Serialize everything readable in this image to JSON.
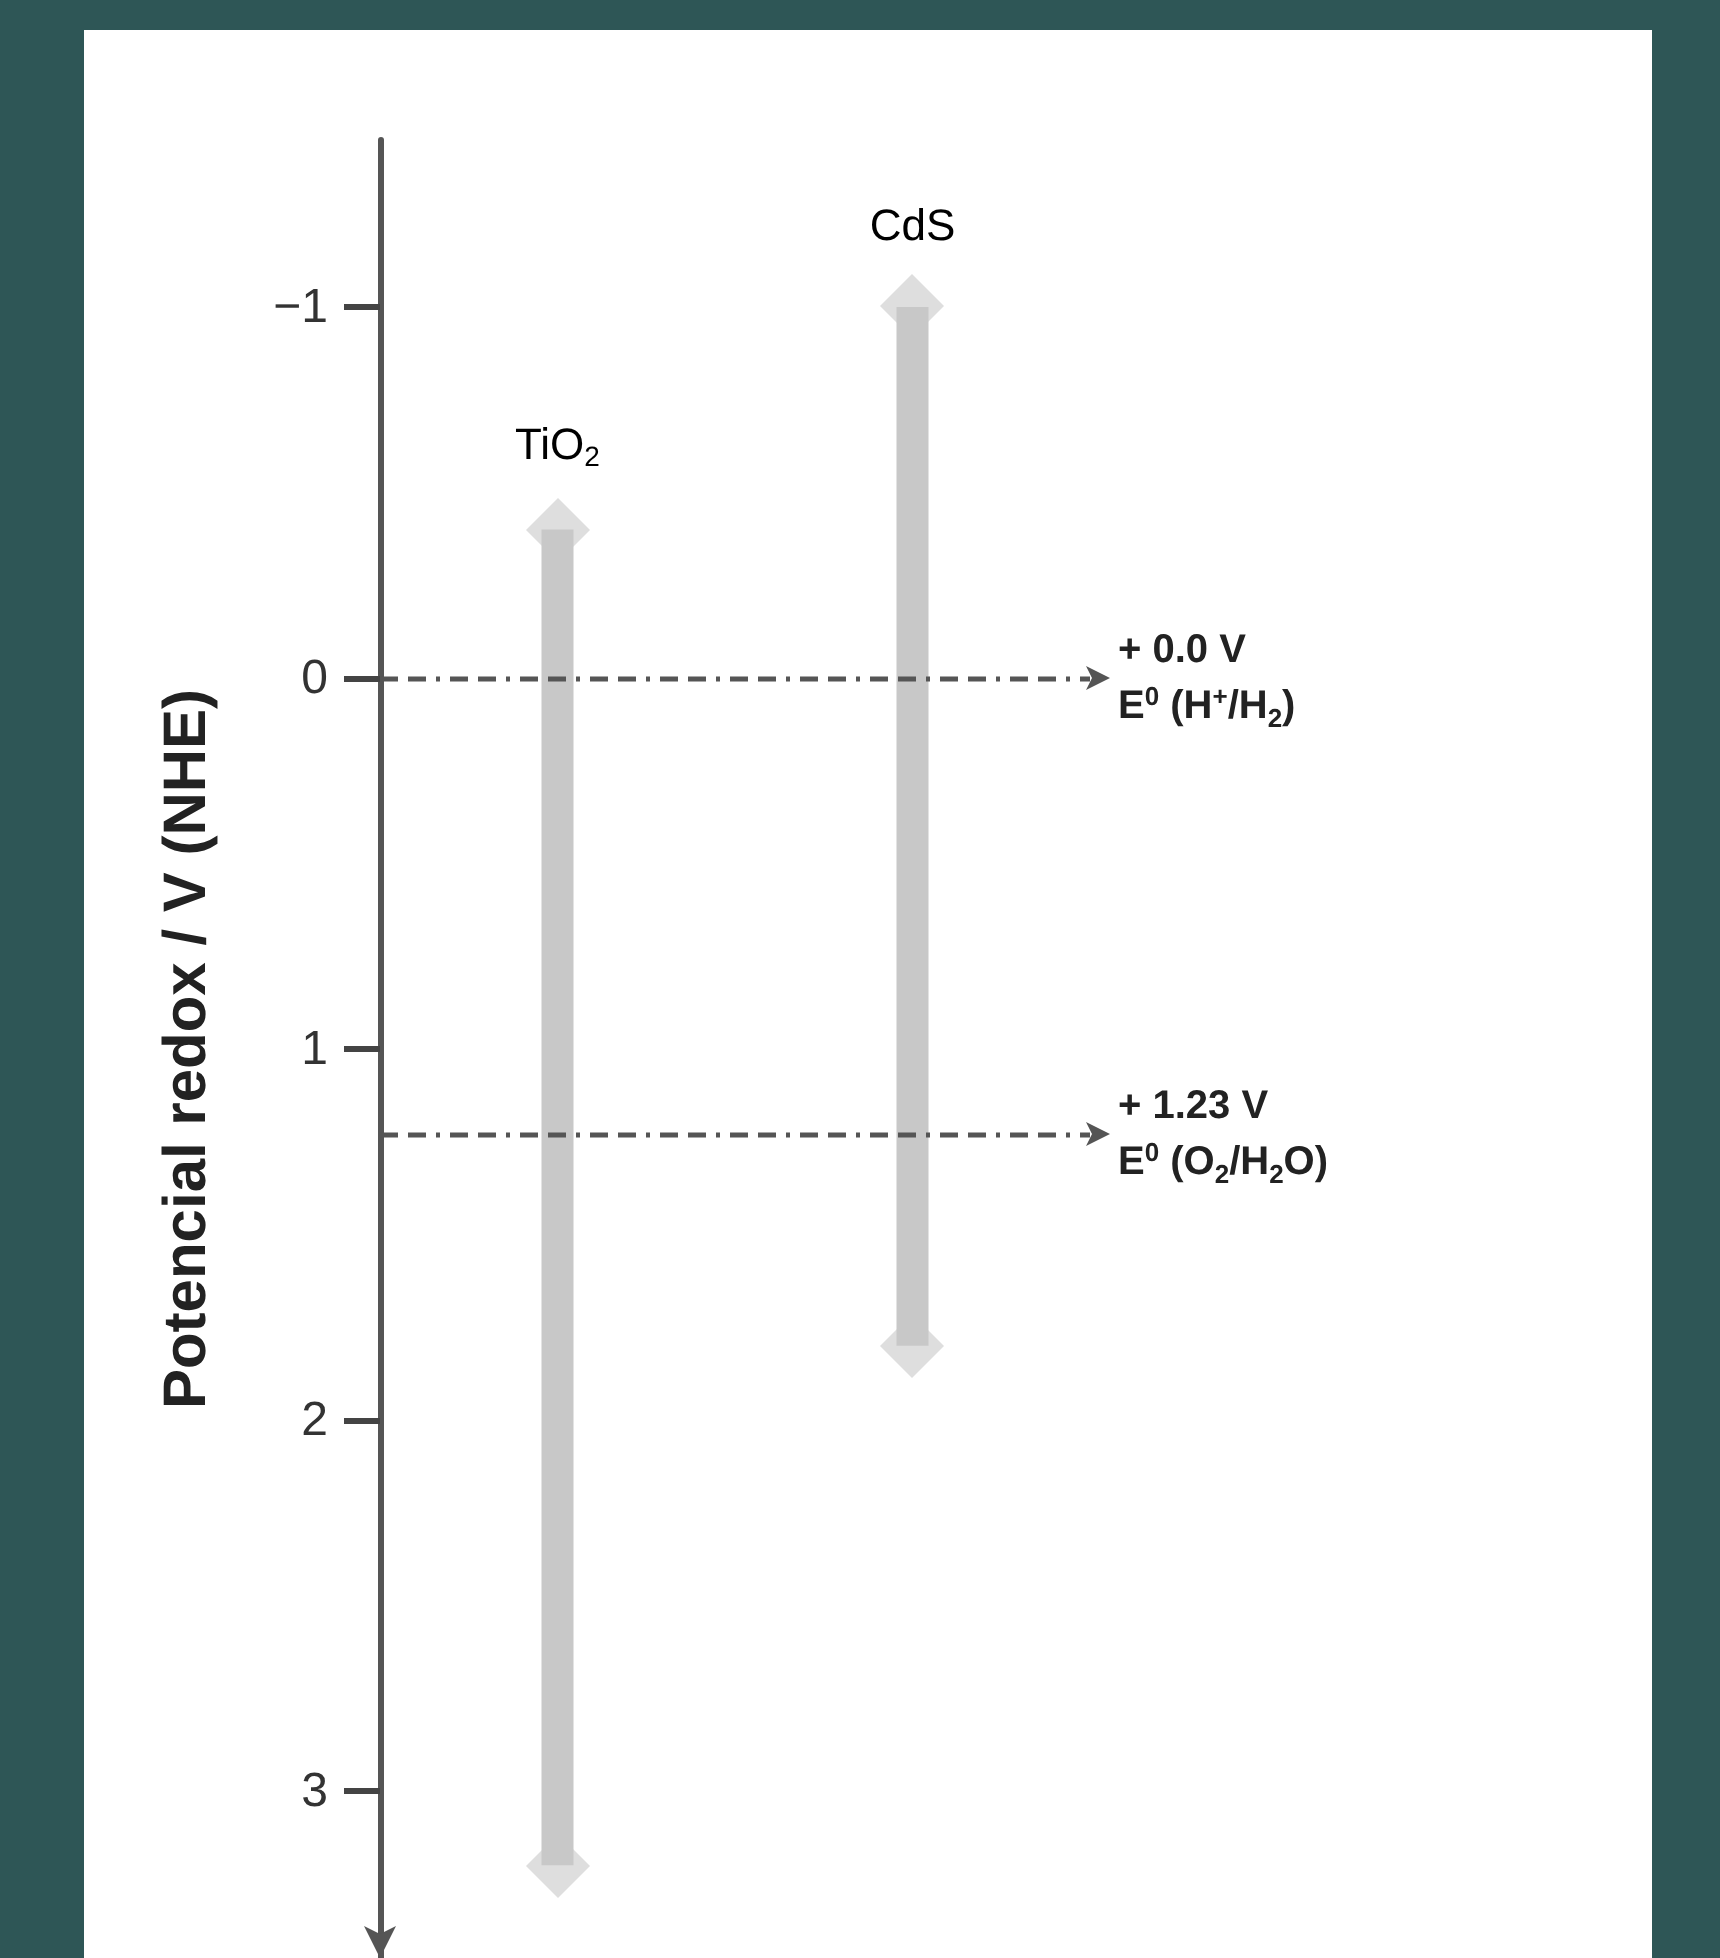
{
  "chart_data": {
    "type": "bar",
    "ylabel": "Potencial redox / V (NHE)",
    "categories": [
      "TiO$_{2}$",
      "CdS"
    ],
    "base": [
      -0.4,
      -1.0
    ],
    "values": [
      3.6,
      2.8
    ],
    "color": "#c8c8c8",
    "marker": "diamond",
    "ylim": [
      3.45,
      -1.45
    ],
    "yticks": [
      {
        "value": -1,
        "label": "−1"
      },
      0,
      1,
      2,
      3
    ],
    "tick_labels": "y",
    "grid": false,
    "ref_lines": [
      {
        "axis": "y",
        "value": 0,
        "label": "+ 0.0 V\nE$^{0}$ (H$^{+}$/H$_{2}$)",
        "color": "#555555",
        "line_style": "dashed"
      },
      {
        "axis": "y",
        "value": 1.23,
        "label": "+ 1.23 V\nE$^{0}$ (O$_{2}$/H$_{2}$O)",
        "color": "#555555",
        "line_style": "dashed"
      }
    ]
  }
}
